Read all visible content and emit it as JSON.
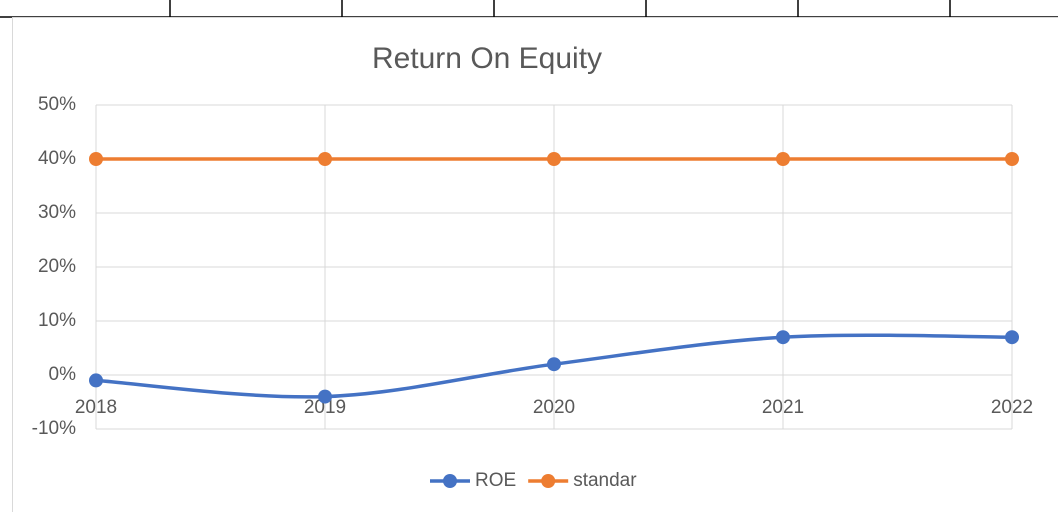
{
  "chart_data": {
    "type": "line",
    "title": "Return On Equity",
    "categories": [
      "2018",
      "2019",
      "2020",
      "2021",
      "2022"
    ],
    "series": [
      {
        "name": "ROE",
        "color": "#4472c4",
        "values": [
          -1,
          -4,
          2,
          7,
          7
        ]
      },
      {
        "name": "standar",
        "color": "#ed7d31",
        "values": [
          40,
          40,
          40,
          40,
          40
        ]
      }
    ],
    "ylim": [
      -10,
      50
    ],
    "yticks": [
      {
        "value": -10,
        "label": "-10%"
      },
      {
        "value": 0,
        "label": "0%"
      },
      {
        "value": 10,
        "label": "10%"
      },
      {
        "value": 20,
        "label": "20%"
      },
      {
        "value": 30,
        "label": "30%"
      },
      {
        "value": 40,
        "label": "40%"
      },
      {
        "value": 50,
        "label": "50%"
      }
    ],
    "grid": true,
    "smooth": true,
    "legend": "bottom"
  }
}
